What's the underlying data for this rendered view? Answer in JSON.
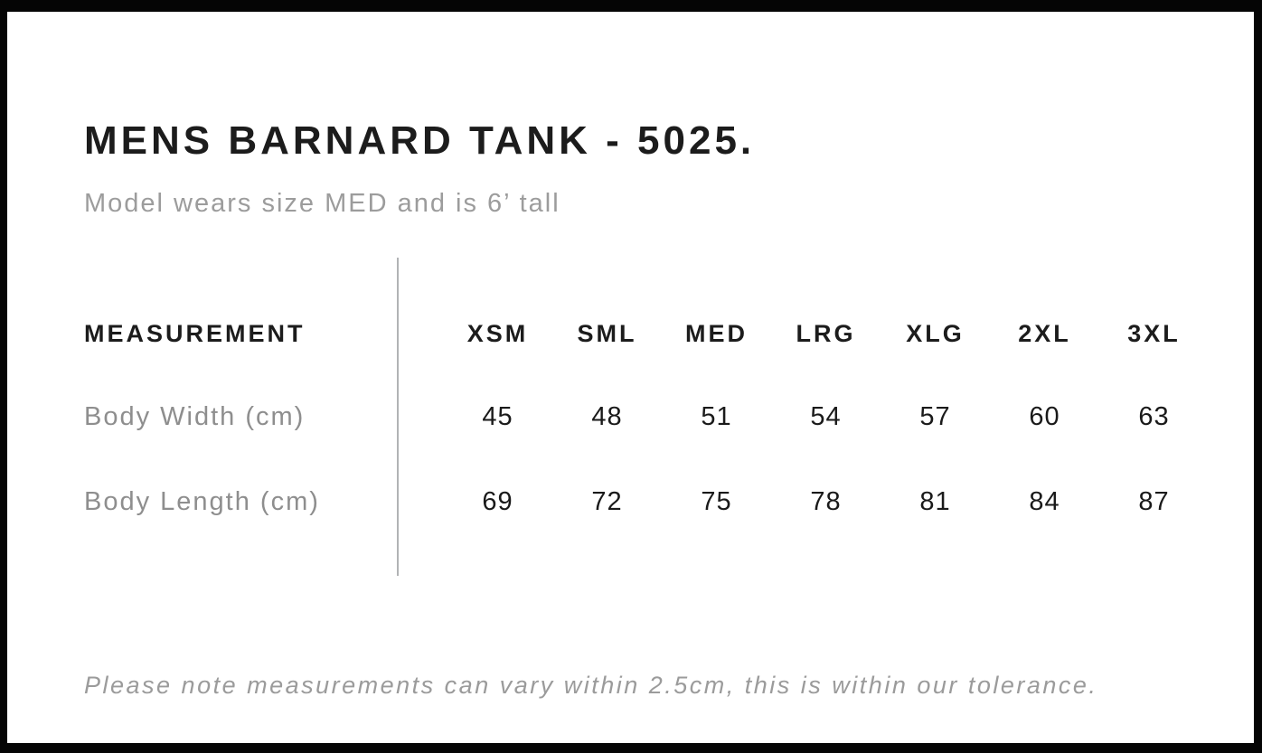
{
  "page": {
    "title": "MENS BARNARD TANK - 5025.",
    "subtitle": "Model wears size MED and is 6’ tall",
    "footnote": "Please note measurements can vary within 2.5cm, this is within our tolerance."
  },
  "table": {
    "measurement_header": "MEASUREMENT",
    "size_headers": [
      "XSM",
      "SML",
      "MED",
      "LRG",
      "XLG",
      "2XL",
      "3XL"
    ],
    "rows": [
      {
        "label": "Body Width (cm)",
        "values": [
          "45",
          "48",
          "51",
          "54",
          "57",
          "60",
          "63"
        ]
      },
      {
        "label": "Body Length (cm)",
        "values": [
          "69",
          "72",
          "75",
          "78",
          "81",
          "84",
          "87"
        ]
      }
    ]
  },
  "colors": {
    "frame": "#050505",
    "background": "#ffffff",
    "heading_text": "#1c1c1c",
    "muted_text": "#9c9c9c",
    "label_text": "#8e8e8e",
    "divider": "#b1b3b5"
  }
}
